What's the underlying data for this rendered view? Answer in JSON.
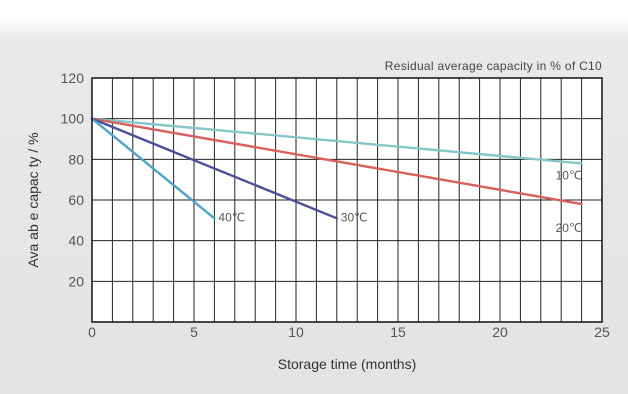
{
  "chart_data": {
    "type": "line",
    "title": "",
    "annotation": "Residual average capacity in % of C10",
    "xlabel": "Storage time (months)",
    "ylabel": "Ava ab e capac ty / %",
    "xlim": [
      0,
      25
    ],
    "ylim": [
      0,
      120
    ],
    "x_ticks": [
      "0",
      "5",
      "10",
      "15",
      "20",
      "25"
    ],
    "y_ticks": [
      "20",
      "40",
      "60",
      "80",
      "100",
      "120"
    ],
    "grid": true,
    "series": [
      {
        "name": "10℃",
        "color": "#86c5c9",
        "x": [
          0,
          24
        ],
        "y": [
          100,
          78
        ]
      },
      {
        "name": "20℃",
        "color": "#d9605c",
        "x": [
          0,
          24
        ],
        "y": [
          100,
          58
        ]
      },
      {
        "name": "30℃",
        "color": "#4a4f98",
        "x": [
          0,
          12
        ],
        "y": [
          100,
          51
        ]
      },
      {
        "name": "40℃",
        "color": "#4da3c9",
        "x": [
          0,
          6
        ],
        "y": [
          100,
          51
        ]
      }
    ]
  }
}
